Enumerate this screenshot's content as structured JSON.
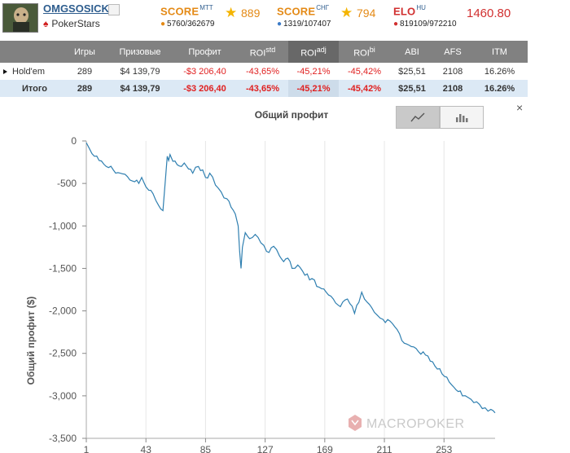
{
  "player": {
    "username": "OMGSOSICK",
    "room": "PokerStars"
  },
  "scores": {
    "mtt": {
      "label": "SCORE",
      "sup": "MTT",
      "rank": "5760/362679",
      "value": "889"
    },
    "sng": {
      "label": "SCORE",
      "sup": "СНГ",
      "rank": "1319/107407",
      "value": "794"
    },
    "elo": {
      "label": "ELO",
      "sup": "HU",
      "rank": "819109/972210",
      "value": "1460.80"
    }
  },
  "table": {
    "headers": {
      "games": "Игры",
      "prize": "Призовые",
      "profit": "Профит",
      "roi": "ROI",
      "roi_sup": "std",
      "roi_adj": "ROI",
      "roi_adj_sup": "adj",
      "roi_bi": "ROI",
      "roi_bi_sup": "bi",
      "abi": "ABI",
      "afs": "AFS",
      "itm": "ITM"
    },
    "rows": [
      {
        "name": "Hold'em",
        "games": "289",
        "prize": "$4 139,79",
        "profit": "-$3 206,40",
        "roi_std": "-43,65%",
        "roi_adj": "-45,21%",
        "roi_bi": "-45,42%",
        "abi": "$25,51",
        "afs": "2108",
        "itm": "16.26%"
      },
      {
        "name": "Итого",
        "games": "289",
        "prize": "$4 139,79",
        "profit": "-$3 206,40",
        "roi_std": "-43,65%",
        "roi_adj": "-45,21%",
        "roi_bi": "-45,42%",
        "abi": "$25,51",
        "afs": "2108",
        "itm": "16.26%"
      }
    ]
  },
  "chart_title": "Общий профит",
  "watermark": "MACROPOKER",
  "close_label": "×",
  "chart_data": {
    "type": "line",
    "title": "Общий профит",
    "ylabel": "Общий профит ($)",
    "xlabel": "",
    "ylim": [
      -3500,
      0
    ],
    "yticks": [
      0,
      -500,
      -1000,
      -1500,
      -2000,
      -2500,
      -3000,
      -3500
    ],
    "ytick_labels": [
      "0",
      "-500",
      "-1,000",
      "-1,500",
      "-2,000",
      "-2,500",
      "-3,000",
      "-3,500"
    ],
    "xlim": [
      1,
      289
    ],
    "xticks": [
      1,
      43,
      85,
      127,
      169,
      211,
      253
    ],
    "grid": "vertical",
    "color": "#2f7fb0",
    "series": [
      {
        "x": [
          1,
          5,
          10,
          15,
          20,
          25,
          30,
          35,
          38,
          40,
          43,
          45,
          48,
          50,
          52,
          55,
          57,
          58,
          59,
          60,
          62,
          65,
          68,
          70,
          73,
          76,
          80,
          83,
          85,
          88,
          92,
          96,
          100,
          103,
          106,
          108,
          109,
          110,
          111,
          113,
          116,
          120,
          124,
          128,
          133,
          137,
          140,
          143,
          146,
          150,
          155,
          160,
          165,
          170,
          175,
          180,
          185,
          190,
          193,
          195,
          197,
          199,
          202,
          206,
          210,
          215,
          220,
          225,
          230,
          235,
          240,
          245,
          250,
          255,
          260,
          263,
          266,
          270,
          274,
          278,
          280,
          282,
          284,
          286,
          289
        ],
        "y": [
          -20,
          -150,
          -230,
          -300,
          -340,
          -380,
          -420,
          -480,
          -500,
          -430,
          -540,
          -580,
          -620,
          -700,
          -760,
          -820,
          -400,
          -180,
          -230,
          -160,
          -240,
          -280,
          -300,
          -260,
          -330,
          -380,
          -300,
          -340,
          -430,
          -380,
          -520,
          -600,
          -680,
          -780,
          -860,
          -1000,
          -1300,
          -1500,
          -1250,
          -1080,
          -1150,
          -1100,
          -1200,
          -1300,
          -1240,
          -1350,
          -1420,
          -1380,
          -1500,
          -1460,
          -1580,
          -1620,
          -1720,
          -1780,
          -1860,
          -1950,
          -1860,
          -2030,
          -1900,
          -1780,
          -1860,
          -1900,
          -1960,
          -2050,
          -2100,
          -2120,
          -2220,
          -2380,
          -2420,
          -2480,
          -2520,
          -2600,
          -2680,
          -2780,
          -2900,
          -2950,
          -3000,
          -3020,
          -3080,
          -3100,
          -3150,
          -3140,
          -3180,
          -3160,
          -3200
        ]
      }
    ]
  }
}
